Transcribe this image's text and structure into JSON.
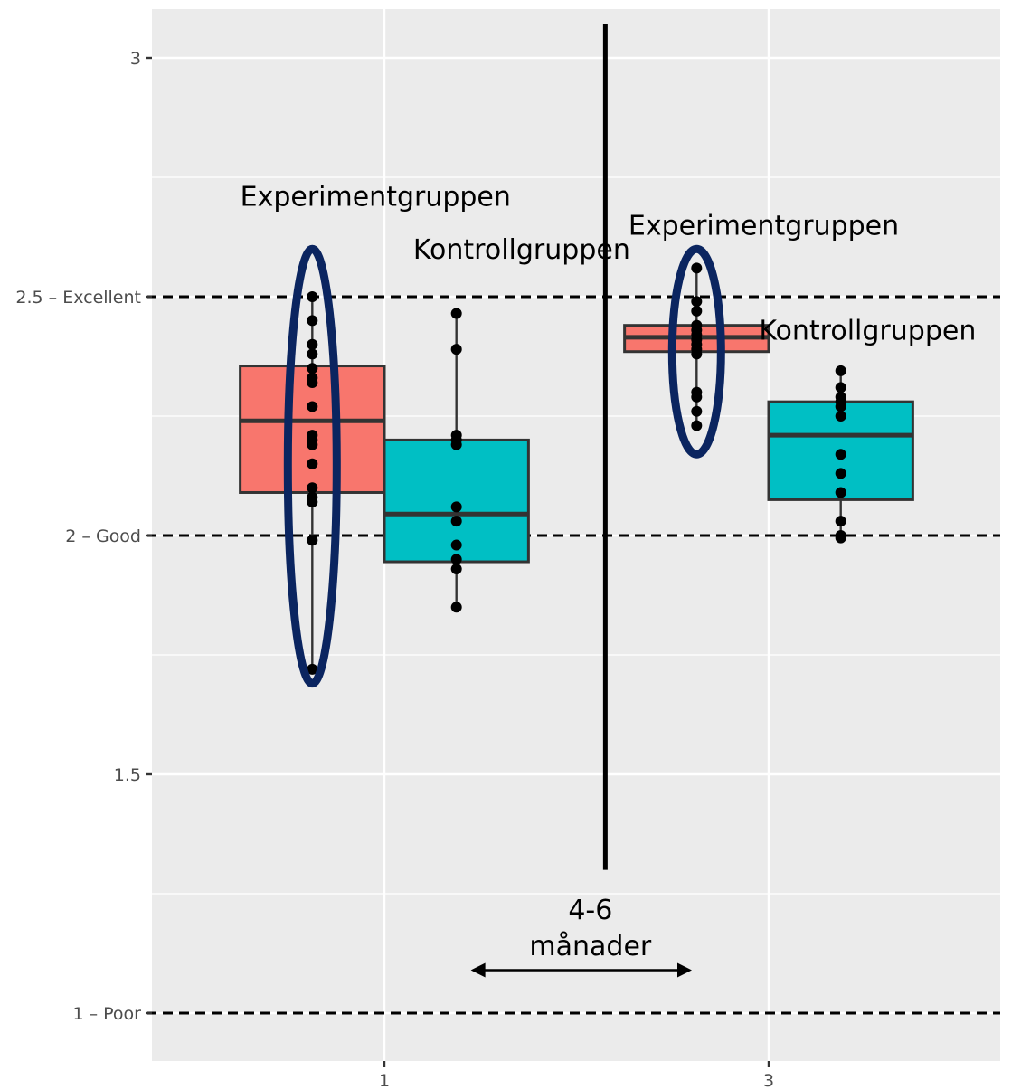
{
  "chart_data": {
    "type": "boxplot",
    "x_ticks": [
      "1",
      "3"
    ],
    "y_ticks": [
      {
        "value": 3,
        "label": "3"
      },
      {
        "value": 2.5,
        "label": "2.5 – Excellent"
      },
      {
        "value": 2,
        "label": "2 – Good"
      },
      {
        "value": 1.5,
        "label": "1.5"
      },
      {
        "value": 1,
        "label": "1 – Poor"
      }
    ],
    "ylim": [
      0.9,
      3.1
    ],
    "xlim": [
      0.4,
      4.6
    ],
    "grid": true,
    "background": "#ebebeb",
    "reference_lines": [
      2.5,
      2.0,
      1.0
    ],
    "series": [
      {
        "name": "Experimentgruppen",
        "color": "#f8766d"
      },
      {
        "name": "Kontrollgruppen",
        "color": "#00bfc4"
      }
    ],
    "boxes": [
      {
        "group": "Experimentgruppen",
        "x": 0.625,
        "whisker_low": 1.72,
        "q1": 2.09,
        "median": 2.24,
        "q3": 2.355,
        "whisker_high": 2.5,
        "color": "#f8766d",
        "points": [
          2.5,
          2.45,
          2.4,
          2.38,
          2.35,
          2.33,
          2.32,
          2.27,
          2.21,
          2.2,
          2.19,
          2.15,
          2.1,
          2.08,
          2.07,
          1.99,
          1.72
        ]
      },
      {
        "group": "Kontrollgruppen",
        "x": 1.375,
        "whisker_low": 1.85,
        "q1": 1.945,
        "median": 2.045,
        "q3": 2.2,
        "whisker_high": 2.465,
        "color": "#00bfc4",
        "points": [
          2.465,
          2.39,
          2.21,
          2.2,
          2.19,
          2.06,
          2.03,
          1.98,
          1.95,
          1.93,
          1.85
        ]
      },
      {
        "group": "Experimentgruppen",
        "x": 2.625,
        "whisker_low": 2.23,
        "q1": 2.385,
        "median": 2.415,
        "q3": 2.44,
        "whisker_high": 2.56,
        "color": "#f8766d",
        "points": [
          2.56,
          2.49,
          2.47,
          2.44,
          2.43,
          2.42,
          2.41,
          2.4,
          2.39,
          2.38,
          2.3,
          2.29,
          2.26,
          2.23
        ]
      },
      {
        "group": "Kontrollgruppen",
        "x": 3.375,
        "whisker_low": 2.0,
        "q1": 2.075,
        "median": 2.21,
        "q3": 2.28,
        "whisker_high": 2.345,
        "color": "#00bfc4",
        "points": [
          2.345,
          2.31,
          2.29,
          2.28,
          2.27,
          2.25,
          2.17,
          2.13,
          2.09,
          2.03,
          2.0,
          1.995
        ]
      }
    ],
    "highlight_ellipses": [
      {
        "x": 0.625,
        "y_low": 1.69,
        "y_high": 2.6,
        "color": "#0b2560"
      },
      {
        "x": 2.625,
        "y_low": 2.17,
        "y_high": 2.6,
        "color": "#0b2560"
      }
    ],
    "divider_x": 2.15,
    "divider_y_range": [
      1.3,
      3.07
    ],
    "arrow": {
      "x_from": 1.45,
      "x_to": 2.6,
      "y": 1.09
    },
    "annotations": [
      {
        "text": "Experimentgruppen",
        "x": 0.25,
        "y": 2.69
      },
      {
        "text": "Kontrollgruppen",
        "x": 1.15,
        "y": 2.58
      },
      {
        "text": "Experimentgruppen",
        "x": 2.27,
        "y": 2.63
      },
      {
        "text": "Kontrollgruppen",
        "x": 2.95,
        "y": 2.41
      }
    ],
    "middle_label": [
      "4-6",
      "månader"
    ]
  }
}
